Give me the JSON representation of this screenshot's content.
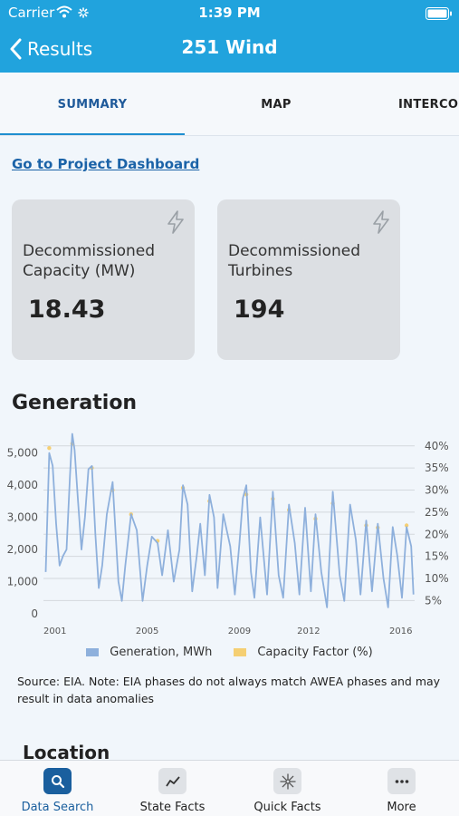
{
  "status_bar": {
    "carrier": "Carrier",
    "time": "1:39 PM"
  },
  "nav": {
    "back_label": "Results",
    "title": "251 Wind"
  },
  "tabs": [
    {
      "label": "SUMMARY",
      "selected": true
    },
    {
      "label": "MAP",
      "selected": false
    },
    {
      "label": "INTERCON",
      "selected": false
    }
  ],
  "dashboard_link": "Go to Project Dashboard",
  "cards": [
    {
      "label": "Decommissioned Capacity (MW)",
      "value": "18.43"
    },
    {
      "label": "Decommissioned Turbines",
      "value": "194"
    }
  ],
  "generation": {
    "title": "Generation",
    "source_note": "Source: EIA. Note: EIA phases do not always match AWEA phases and may result in data anomalies"
  },
  "chart_data": {
    "type": "line",
    "x_ticks": [
      "2001",
      "2005",
      "2009",
      "2012",
      "2016"
    ],
    "y_left_ticks": [
      "0",
      "1,000",
      "2,000",
      "3,000",
      "4,000",
      "5,000"
    ],
    "y_left_range": [
      0,
      5500
    ],
    "y_right_ticks": [
      "5%",
      "10%",
      "15%",
      "20%",
      "25%",
      "30%",
      "35%",
      "40%"
    ],
    "y_right_range": [
      2,
      42
    ],
    "x_range": [
      2000.5,
      2016.6
    ],
    "grid": true,
    "legend_position": "bottom",
    "series": [
      {
        "name": "Generation, MWh",
        "color": "#8eb0dc",
        "axis": "left",
        "points": [
          [
            2000.6,
            1300
          ],
          [
            2000.75,
            5000
          ],
          [
            2000.9,
            4600
          ],
          [
            2001.05,
            2800
          ],
          [
            2001.2,
            1500
          ],
          [
            2001.35,
            1800
          ],
          [
            2001.5,
            2000
          ],
          [
            2001.65,
            4300
          ],
          [
            2001.75,
            5600
          ],
          [
            2001.85,
            5100
          ],
          [
            2002.0,
            3500
          ],
          [
            2002.15,
            2000
          ],
          [
            2002.3,
            3000
          ],
          [
            2002.45,
            4500
          ],
          [
            2002.6,
            4600
          ],
          [
            2002.75,
            2500
          ],
          [
            2002.9,
            800
          ],
          [
            2003.05,
            1500
          ],
          [
            2003.25,
            3100
          ],
          [
            2003.5,
            4100
          ],
          [
            2003.75,
            1000
          ],
          [
            2003.9,
            400
          ],
          [
            2004.05,
            1500
          ],
          [
            2004.3,
            3100
          ],
          [
            2004.55,
            2600
          ],
          [
            2004.8,
            400
          ],
          [
            2005.0,
            1500
          ],
          [
            2005.2,
            2400
          ],
          [
            2005.45,
            2200
          ],
          [
            2005.65,
            1200
          ],
          [
            2005.9,
            2600
          ],
          [
            2006.15,
            1000
          ],
          [
            2006.4,
            2000
          ],
          [
            2006.55,
            4000
          ],
          [
            2006.75,
            3400
          ],
          [
            2006.95,
            700
          ],
          [
            2007.15,
            1800
          ],
          [
            2007.3,
            2800
          ],
          [
            2007.5,
            1200
          ],
          [
            2007.7,
            3700
          ],
          [
            2007.9,
            3000
          ],
          [
            2008.05,
            800
          ],
          [
            2008.3,
            3100
          ],
          [
            2008.6,
            2100
          ],
          [
            2008.8,
            600
          ],
          [
            2009.0,
            2200
          ],
          [
            2009.15,
            3600
          ],
          [
            2009.3,
            4000
          ],
          [
            2009.5,
            1300
          ],
          [
            2009.65,
            500
          ],
          [
            2009.9,
            3000
          ],
          [
            2010.2,
            600
          ],
          [
            2010.45,
            3800
          ],
          [
            2010.7,
            1200
          ],
          [
            2010.9,
            500
          ],
          [
            2011.15,
            3400
          ],
          [
            2011.4,
            2200
          ],
          [
            2011.6,
            600
          ],
          [
            2011.85,
            3300
          ],
          [
            2012.1,
            700
          ],
          [
            2012.3,
            3100
          ],
          [
            2012.55,
            1300
          ],
          [
            2012.8,
            200
          ],
          [
            2013.05,
            3800
          ],
          [
            2013.35,
            1200
          ],
          [
            2013.55,
            400
          ],
          [
            2013.8,
            3400
          ],
          [
            2014.05,
            2300
          ],
          [
            2014.25,
            600
          ],
          [
            2014.5,
            2900
          ],
          [
            2014.75,
            700
          ],
          [
            2015.0,
            2800
          ],
          [
            2015.25,
            1100
          ],
          [
            2015.45,
            200
          ],
          [
            2015.65,
            2700
          ],
          [
            2015.85,
            1800
          ],
          [
            2016.05,
            500
          ],
          [
            2016.25,
            2700
          ],
          [
            2016.45,
            2100
          ],
          [
            2016.55,
            600
          ]
        ]
      },
      {
        "name": "Capacity Factor (%)",
        "color": "#f5cf73",
        "axis": "right",
        "points": [
          [
            2000.75,
            39.5
          ],
          [
            2001.75,
            40.5
          ],
          [
            2002.6,
            35
          ],
          [
            2003.5,
            30
          ],
          [
            2004.3,
            24.5
          ],
          [
            2005.45,
            18.5
          ],
          [
            2006.55,
            30.5
          ],
          [
            2007.7,
            27.5
          ],
          [
            2009.3,
            29
          ],
          [
            2010.45,
            28
          ],
          [
            2011.15,
            25.5
          ],
          [
            2012.3,
            23.5
          ],
          [
            2013.05,
            27
          ],
          [
            2014.5,
            22
          ],
          [
            2015.0,
            21.5
          ],
          [
            2016.25,
            22
          ]
        ]
      }
    ]
  },
  "location_title": "Location",
  "bottom_nav": [
    {
      "label": "Data Search",
      "icon": "search-icon",
      "active": true
    },
    {
      "label": "State Facts",
      "icon": "trend-icon",
      "active": false
    },
    {
      "label": "Quick Facts",
      "icon": "snowflake-icon",
      "active": false
    },
    {
      "label": "More",
      "icon": "more-icon",
      "active": false
    }
  ],
  "colors": {
    "primary": "#21a3dd",
    "link": "#1b63a8",
    "active_tab": "#1f5a9a",
    "card_bg": "#dcdfe3"
  }
}
